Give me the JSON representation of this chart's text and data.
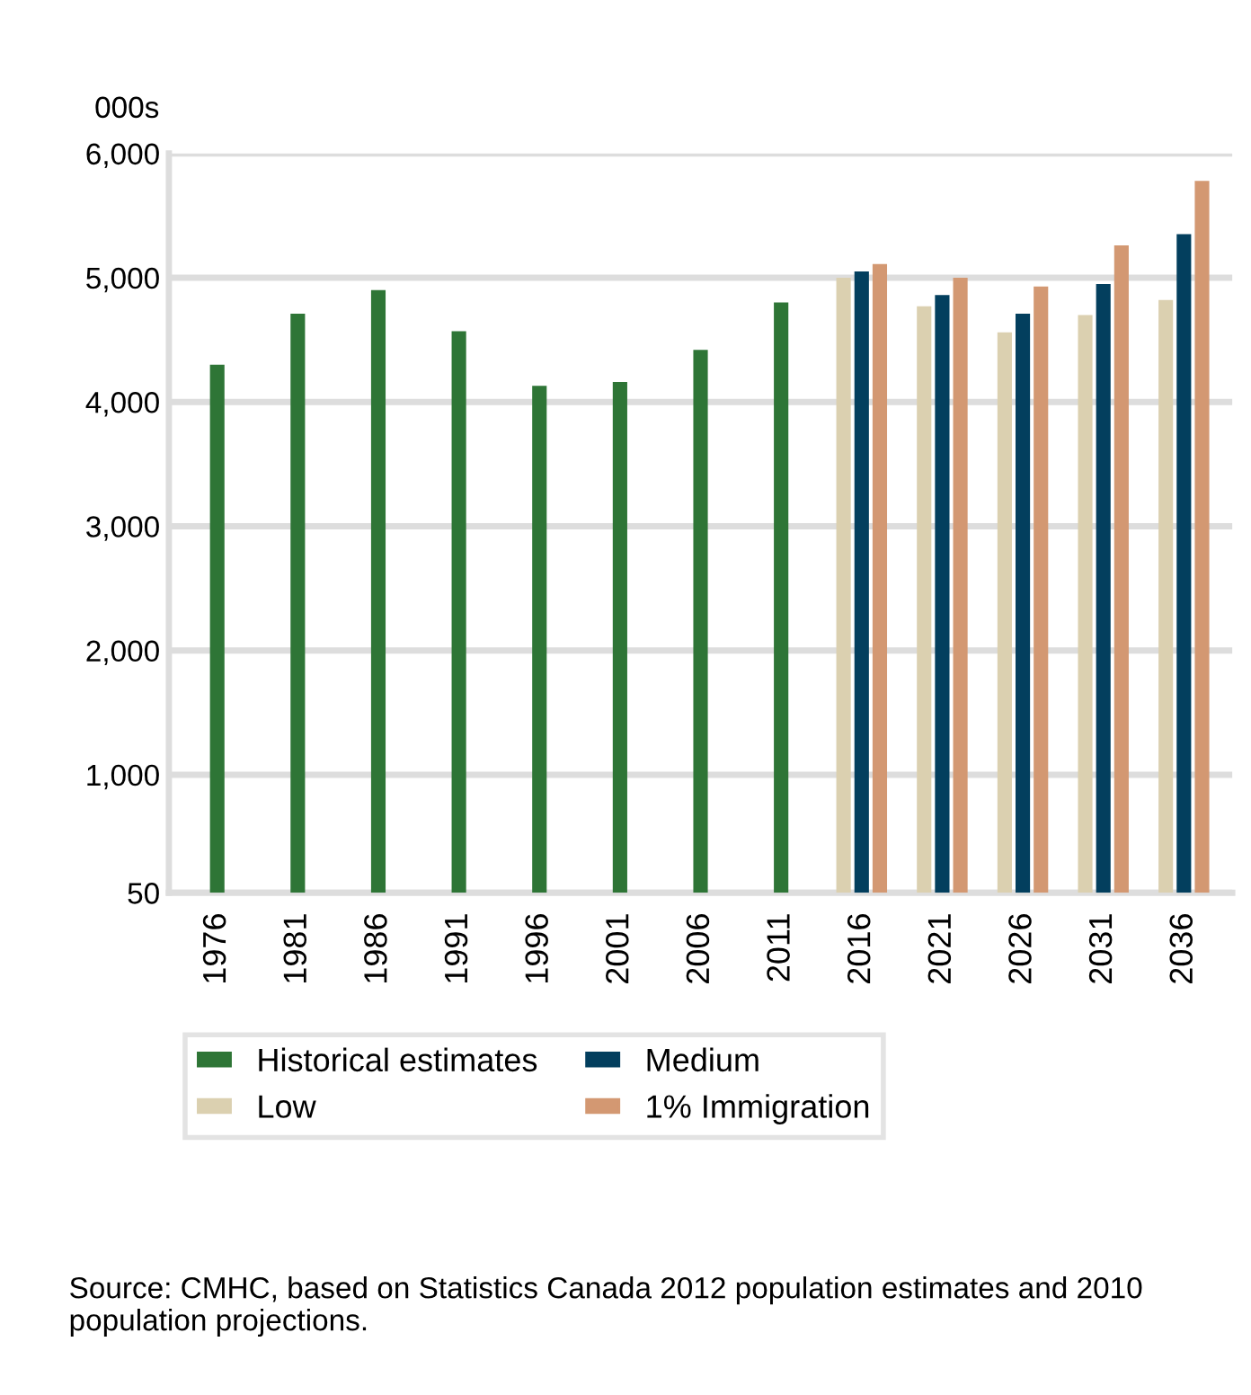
{
  "chart_data": {
    "type": "bar",
    "ylabel": "000s",
    "categories": [
      "1976",
      "1981",
      "1986",
      "1991",
      "1996",
      "2001",
      "2006",
      "2011",
      "2016",
      "2021",
      "2026",
      "2031",
      "2036"
    ],
    "series": [
      {
        "name": "Historical estimates",
        "color": "#2e7536",
        "values": [
          4300,
          4710,
          4900,
          4570,
          4130,
          4160,
          4420,
          4800,
          null,
          null,
          null,
          null,
          null
        ]
      },
      {
        "name": "Low",
        "color": "#dbd0b0",
        "values": [
          null,
          null,
          null,
          null,
          null,
          null,
          null,
          null,
          5000,
          4770,
          4560,
          4700,
          4820
        ]
      },
      {
        "name": "Medium",
        "color": "#033f5e",
        "values": [
          null,
          null,
          null,
          null,
          null,
          null,
          null,
          null,
          5050,
          4860,
          4710,
          4950,
          5350
        ]
      },
      {
        "name": "1% Immigration",
        "color": "#d39872",
        "values": [
          null,
          null,
          null,
          null,
          null,
          null,
          null,
          null,
          5110,
          5000,
          4930,
          5260,
          5780
        ]
      }
    ],
    "ylim": [
      50,
      6000
    ],
    "yticks": [
      50,
      {
        "value": 1000,
        "label": "1,000"
      },
      {
        "value": 2000,
        "label": "2,000"
      },
      {
        "value": 3000,
        "label": "3,000"
      },
      {
        "value": 4000,
        "label": "4,000"
      },
      {
        "value": 5000,
        "label": "5,000"
      },
      {
        "value": 6000,
        "label": "6,000"
      }
    ],
    "grid": "y",
    "legend": "bottom",
    "annotations": [
      "Source: CMHC, based on Statistics Canada 2012 population estimates and 2010 population projections."
    ]
  }
}
